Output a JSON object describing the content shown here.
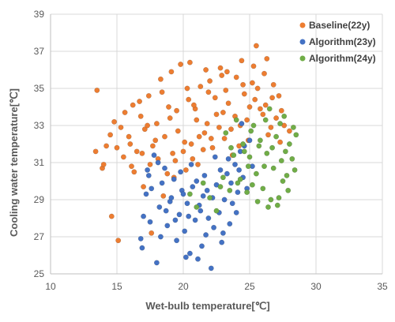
{
  "chart_data": {
    "type": "scatter",
    "xlabel": "Wet-bulb temperature[℃]",
    "ylabel": "Cooling water temperature[℃]",
    "xlim": [
      10,
      35
    ],
    "ylim": [
      25,
      39
    ],
    "xticks": [
      10,
      15,
      20,
      25,
      30,
      35
    ],
    "yticks": [
      25,
      27,
      29,
      31,
      33,
      35,
      37,
      39
    ],
    "grid": "major gridlines on",
    "legend_position": "top-right",
    "series": [
      {
        "name": "Baseline(22y)",
        "color": "#ED7D31",
        "points": [
          [
            13.5,
            34.9
          ],
          [
            13.4,
            31.6
          ],
          [
            13.9,
            30.7
          ],
          [
            14.2,
            31.9
          ],
          [
            14.5,
            32.5
          ],
          [
            14.8,
            33.2
          ],
          [
            15.0,
            31.8
          ],
          [
            15.3,
            32.9
          ],
          [
            15.6,
            33.7
          ],
          [
            15.9,
            32.4
          ],
          [
            16.2,
            34.1
          ],
          [
            16.5,
            31.6
          ],
          [
            16.8,
            33.5
          ],
          [
            17.1,
            32.8
          ],
          [
            17.4,
            34.6
          ],
          [
            17.7,
            31.9
          ],
          [
            18.0,
            33.1
          ],
          [
            18.3,
            35.5
          ],
          [
            18.6,
            32.4
          ],
          [
            18.9,
            34.0
          ],
          [
            19.2,
            31.5
          ],
          [
            19.5,
            33.8
          ],
          [
            19.8,
            36.3
          ],
          [
            20.1,
            32.1
          ],
          [
            20.4,
            34.4
          ],
          [
            20.7,
            31.2
          ],
          [
            21.0,
            33.3
          ],
          [
            21.3,
            35.1
          ],
          [
            21.6,
            32.6
          ],
          [
            21.9,
            34.8
          ],
          [
            22.2,
            31.8
          ],
          [
            22.5,
            33.6
          ],
          [
            22.8,
            36.1
          ],
          [
            23.1,
            32.3
          ],
          [
            23.4,
            34.2
          ],
          [
            23.7,
            31.4
          ],
          [
            24.0,
            35.6
          ],
          [
            24.3,
            33.0
          ],
          [
            24.6,
            34.7
          ],
          [
            24.9,
            32.2
          ],
          [
            25.2,
            35.3
          ],
          [
            25.5,
            37.3
          ],
          [
            25.8,
            33.9
          ],
          [
            26.1,
            35.8
          ],
          [
            26.4,
            32.5
          ],
          [
            26.7,
            34.5
          ],
          [
            27.0,
            33.4
          ],
          [
            27.3,
            32.1
          ],
          [
            27.6,
            33.0
          ],
          [
            28.0,
            32.7
          ],
          [
            14.0,
            30.9
          ],
          [
            14.6,
            28.1
          ],
          [
            15.1,
            26.8
          ],
          [
            16.3,
            30.5
          ],
          [
            17.0,
            29.7
          ],
          [
            17.6,
            27.2
          ],
          [
            18.5,
            29.2
          ],
          [
            19.3,
            30.2
          ],
          [
            20.2,
            30.6
          ],
          [
            21.1,
            30.9
          ],
          [
            16.0,
            32.0
          ],
          [
            16.7,
            34.3
          ],
          [
            17.3,
            33.0
          ],
          [
            17.9,
            32.2
          ],
          [
            18.4,
            34.8
          ],
          [
            19.0,
            33.4
          ],
          [
            19.6,
            32.7
          ],
          [
            20.3,
            35.0
          ],
          [
            20.9,
            33.9
          ],
          [
            21.5,
            31.7
          ],
          [
            22.0,
            35.4
          ],
          [
            22.7,
            32.9
          ],
          [
            23.3,
            35.9
          ],
          [
            23.9,
            33.5
          ],
          [
            24.4,
            36.5
          ],
          [
            25.0,
            34.0
          ],
          [
            25.6,
            35.0
          ],
          [
            26.2,
            34.1
          ],
          [
            26.8,
            35.2
          ],
          [
            27.4,
            33.8
          ],
          [
            15.5,
            31.3
          ],
          [
            16.1,
            30.8
          ],
          [
            16.9,
            31.5
          ],
          [
            17.5,
            30.9
          ],
          [
            18.1,
            31.2
          ],
          [
            18.8,
            30.4
          ],
          [
            19.4,
            31.1
          ],
          [
            20.0,
            31.6
          ],
          [
            20.6,
            32.0
          ],
          [
            21.2,
            32.4
          ],
          [
            21.8,
            33.1
          ],
          [
            22.4,
            34.5
          ],
          [
            23.0,
            33.7
          ],
          [
            23.6,
            32.8
          ],
          [
            24.2,
            31.9
          ],
          [
            24.8,
            33.3
          ],
          [
            25.4,
            34.4
          ],
          [
            26.0,
            33.6
          ],
          [
            26.6,
            32.9
          ],
          [
            27.2,
            34.6
          ],
          [
            19.1,
            35.9
          ],
          [
            20.5,
            36.4
          ],
          [
            21.7,
            36.0
          ],
          [
            22.9,
            35.7
          ],
          [
            24.5,
            35.2
          ],
          [
            25.3,
            36.2
          ],
          [
            26.3,
            36.6
          ],
          [
            23.2,
            34.9
          ],
          [
            22.1,
            32.3
          ],
          [
            20.8,
            34.1
          ]
        ]
      },
      {
        "name": "Algorithm(23y)",
        "color": "#4472C4",
        "points": [
          [
            16.8,
            26.9
          ],
          [
            16.9,
            26.4
          ],
          [
            17.2,
            29.3
          ],
          [
            17.5,
            27.8
          ],
          [
            17.3,
            30.6
          ],
          [
            17.8,
            31.4
          ],
          [
            18.0,
            25.6
          ],
          [
            18.2,
            28.6
          ],
          [
            18.4,
            29.9
          ],
          [
            18.6,
            30.7
          ],
          [
            18.8,
            27.6
          ],
          [
            19.0,
            28.9
          ],
          [
            19.3,
            30.1
          ],
          [
            19.5,
            26.8
          ],
          [
            19.7,
            28.2
          ],
          [
            19.9,
            29.5
          ],
          [
            20.1,
            27.3
          ],
          [
            20.3,
            28.8
          ],
          [
            20.5,
            26.1
          ],
          [
            20.7,
            29.7
          ],
          [
            20.9,
            27.9
          ],
          [
            21.1,
            25.8
          ],
          [
            21.3,
            28.4
          ],
          [
            21.5,
            29.2
          ],
          [
            21.7,
            27.1
          ],
          [
            21.9,
            28.0
          ],
          [
            22.1,
            25.3
          ],
          [
            22.3,
            27.5
          ],
          [
            22.5,
            29.8
          ],
          [
            22.7,
            28.3
          ],
          [
            22.9,
            26.7
          ],
          [
            23.1,
            29.0
          ],
          [
            23.3,
            30.4
          ],
          [
            23.5,
            27.7
          ],
          [
            23.7,
            28.8
          ],
          [
            23.9,
            30.9
          ],
          [
            24.1,
            29.4
          ],
          [
            24.3,
            31.6
          ],
          [
            24.5,
            30.2
          ],
          [
            24.8,
            29.6
          ],
          [
            25.0,
            32.2
          ],
          [
            17.0,
            28.1
          ],
          [
            17.6,
            29.6
          ],
          [
            18.3,
            27.0
          ],
          [
            19.1,
            29.1
          ],
          [
            19.8,
            30.5
          ],
          [
            20.4,
            28.1
          ],
          [
            21.0,
            30.0
          ],
          [
            21.6,
            30.3
          ],
          [
            22.2,
            29.1
          ],
          [
            22.8,
            30.6
          ],
          [
            23.4,
            31.2
          ],
          [
            24.0,
            28.3
          ],
          [
            24.6,
            31.9
          ],
          [
            25.2,
            30.8
          ],
          [
            17.4,
            30.3
          ],
          [
            18.1,
            31.0
          ],
          [
            18.7,
            28.4
          ],
          [
            19.4,
            27.9
          ],
          [
            20.0,
            29.3
          ],
          [
            20.6,
            30.9
          ],
          [
            21.2,
            28.7
          ],
          [
            21.8,
            29.5
          ],
          [
            22.4,
            31.3
          ],
          [
            23.0,
            27.2
          ],
          [
            23.6,
            29.9
          ],
          [
            24.2,
            30.6
          ],
          [
            24.4,
            33.1
          ],
          [
            20.2,
            25.9
          ],
          [
            21.4,
            26.5
          ]
        ]
      },
      {
        "name": "Algorithm(24y)",
        "color": "#70AD47",
        "points": [
          [
            20.5,
            29.3
          ],
          [
            21.0,
            28.6
          ],
          [
            21.5,
            29.9
          ],
          [
            22.0,
            29.1
          ],
          [
            22.5,
            28.4
          ],
          [
            23.0,
            30.2
          ],
          [
            23.2,
            32.6
          ],
          [
            23.5,
            29.5
          ],
          [
            23.8,
            31.4
          ],
          [
            24.0,
            33.3
          ],
          [
            24.3,
            30.1
          ],
          [
            24.5,
            32.0
          ],
          [
            24.8,
            29.4
          ],
          [
            25.0,
            31.3
          ],
          [
            25.3,
            33.0
          ],
          [
            25.5,
            30.4
          ],
          [
            25.8,
            32.2
          ],
          [
            26.0,
            29.6
          ],
          [
            26.3,
            31.5
          ],
          [
            26.5,
            33.9
          ],
          [
            26.8,
            30.7
          ],
          [
            27.0,
            32.4
          ],
          [
            27.2,
            29.1
          ],
          [
            27.4,
            31.1
          ],
          [
            27.6,
            33.5
          ],
          [
            27.8,
            30.3
          ],
          [
            28.0,
            32.0
          ],
          [
            28.2,
            31.2
          ],
          [
            28.4,
            30.6
          ],
          [
            28.5,
            32.5
          ],
          [
            24.1,
            29.9
          ],
          [
            24.6,
            31.6
          ],
          [
            25.1,
            32.7
          ],
          [
            25.6,
            28.9
          ],
          [
            26.1,
            30.8
          ],
          [
            26.6,
            29.0
          ],
          [
            27.1,
            28.7
          ],
          [
            27.5,
            30.0
          ],
          [
            27.9,
            29.5
          ],
          [
            28.3,
            32.9
          ],
          [
            25.2,
            29.8
          ],
          [
            25.7,
            31.9
          ],
          [
            26.2,
            33.3
          ],
          [
            26.7,
            31.8
          ],
          [
            27.3,
            33.1
          ],
          [
            23.6,
            31.8
          ],
          [
            22.8,
            29.7
          ],
          [
            24.9,
            30.8
          ],
          [
            26.4,
            28.6
          ],
          [
            27.7,
            31.6
          ]
        ]
      }
    ]
  }
}
